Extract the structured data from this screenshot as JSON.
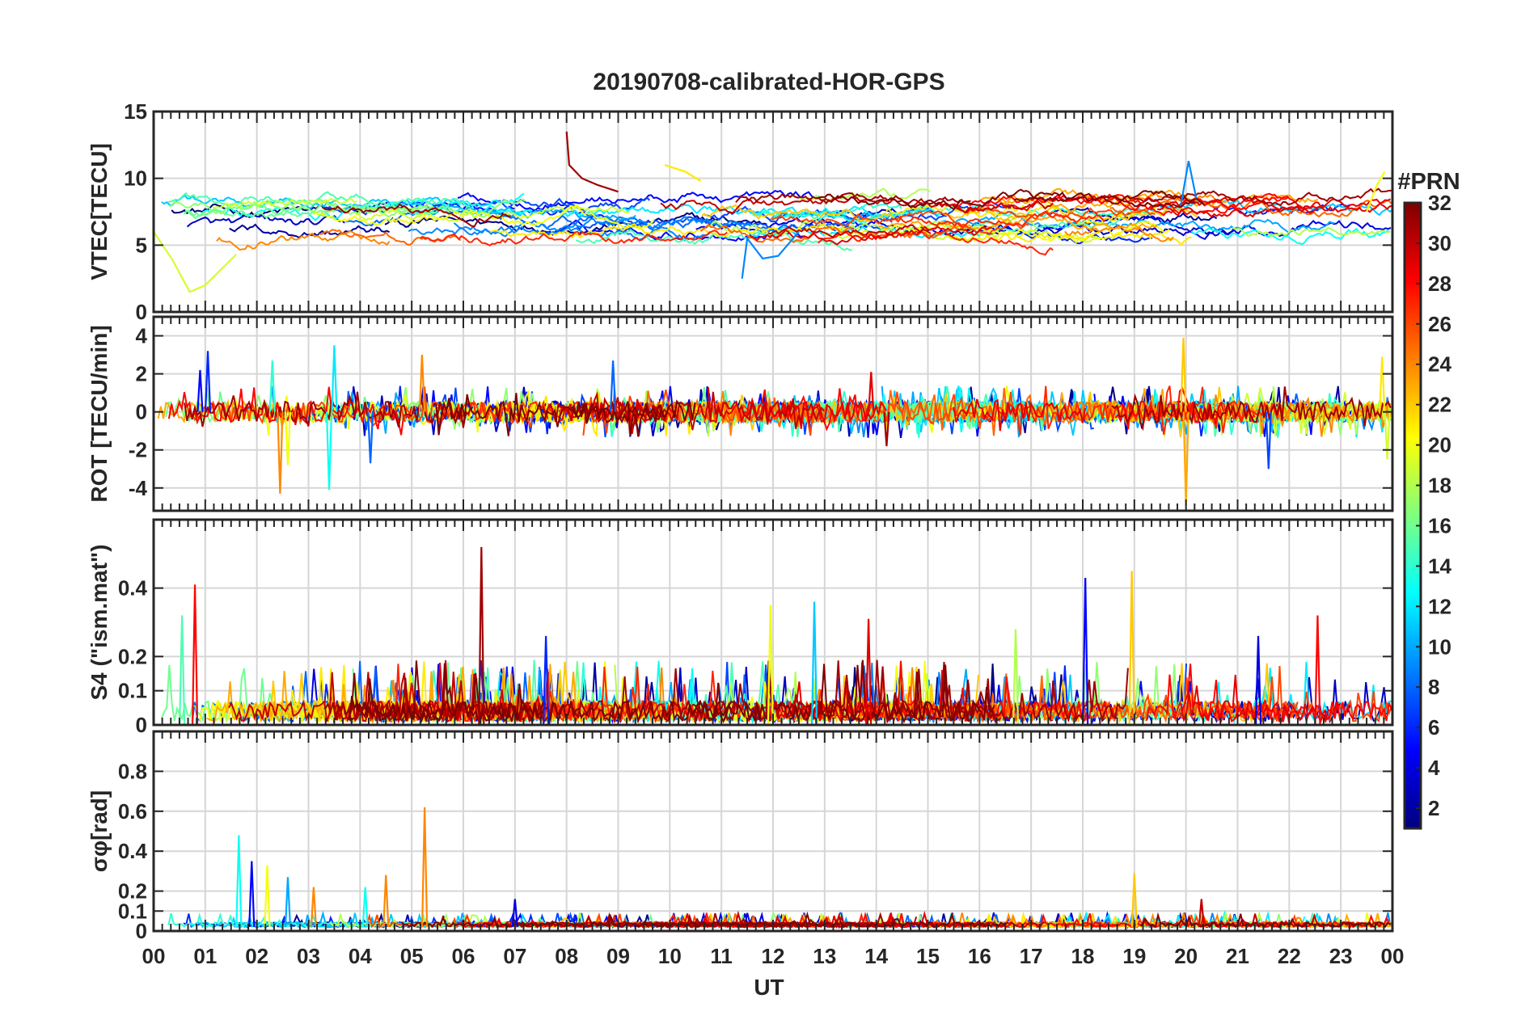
{
  "figure": {
    "title": "20190708-calibrated-HOR-GPS",
    "xlabel": "UT",
    "xtick_labels": [
      "00",
      "01",
      "02",
      "03",
      "04",
      "05",
      "06",
      "07",
      "08",
      "09",
      "10",
      "11",
      "12",
      "13",
      "14",
      "15",
      "16",
      "17",
      "18",
      "19",
      "20",
      "21",
      "22",
      "23",
      "00"
    ],
    "colorbar": {
      "title": "#PRN",
      "range": [
        1,
        32
      ],
      "tick_labels": [
        "2",
        "4",
        "6",
        "8",
        "10",
        "12",
        "14",
        "16",
        "18",
        "20",
        "22",
        "24",
        "26",
        "28",
        "30",
        "32"
      ],
      "colormap": "jet",
      "jet_stops": [
        "#00007f",
        "#0000ff",
        "#007fff",
        "#00ffff",
        "#7fff7f",
        "#ffff00",
        "#ff7f00",
        "#ff0000",
        "#7f0000"
      ]
    }
  },
  "chart_data": [
    {
      "type": "line",
      "panel": "VTEC",
      "ylabel": "VTEC[TECU]",
      "xlim": [
        0,
        24
      ],
      "ylim": [
        0,
        15
      ],
      "yticks": [
        0,
        5,
        10,
        15
      ],
      "ytick_labels": [
        "0",
        "5",
        "10",
        "15"
      ],
      "grid": true,
      "series_description": "one trace per GPS PRN 1-32, colored by PRN",
      "typical_range": [
        5,
        9
      ],
      "features": [
        {
          "prn": 19,
          "x": [
            0.0,
            0.35,
            0.7,
            1.0,
            1.6
          ],
          "y": [
            6.0,
            4.0,
            1.5,
            2.0,
            4.3
          ]
        },
        {
          "prn": 31,
          "x": [
            8.0,
            8.05,
            8.3,
            8.6,
            9.0
          ],
          "y": [
            13.5,
            11.0,
            10.0,
            9.5,
            9.0
          ]
        },
        {
          "prn": 21,
          "x": [
            9.9,
            10.3,
            10.6
          ],
          "y": [
            11.0,
            10.5,
            9.8
          ]
        },
        {
          "prn": 9,
          "x": [
            11.4,
            11.5,
            11.8,
            12.1,
            12.5
          ],
          "y": [
            2.5,
            5.5,
            4.0,
            4.2,
            6.0
          ]
        },
        {
          "prn": 9,
          "x": [
            19.9,
            20.05,
            20.2
          ],
          "y": [
            8.0,
            11.3,
            8.5
          ]
        },
        {
          "prn": 20,
          "x": [
            23.5,
            23.7,
            23.85
          ],
          "y": [
            7.5,
            9.5,
            10.5
          ]
        }
      ]
    },
    {
      "type": "line",
      "panel": "ROT",
      "ylabel": "ROT [TECU/min]",
      "xlim": [
        0,
        24
      ],
      "ylim": [
        -5.2,
        5.0
      ],
      "yticks": [
        -4,
        -2,
        0,
        2,
        4
      ],
      "ytick_labels": [
        "-4",
        "-2",
        "0",
        "2",
        "4"
      ],
      "grid": true,
      "typical_range": [
        -0.5,
        0.5
      ],
      "spikes": [
        {
          "x": 0.9,
          "y": 2.2,
          "prn": 5
        },
        {
          "x": 1.05,
          "y": 3.2,
          "prn": 6
        },
        {
          "x": 2.3,
          "y": 2.7,
          "prn": 14
        },
        {
          "x": 2.45,
          "y": -4.3,
          "prn": 24
        },
        {
          "x": 2.6,
          "y": -2.8,
          "prn": 20
        },
        {
          "x": 3.4,
          "y": -4.1,
          "prn": 13
        },
        {
          "x": 3.5,
          "y": 3.5,
          "prn": 12
        },
        {
          "x": 4.2,
          "y": -2.7,
          "prn": 8
        },
        {
          "x": 5.2,
          "y": 3.0,
          "prn": 24
        },
        {
          "x": 8.9,
          "y": 2.7,
          "prn": 8
        },
        {
          "x": 13.9,
          "y": 2.1,
          "prn": 29
        },
        {
          "x": 14.2,
          "y": -1.8,
          "prn": 31
        },
        {
          "x": 19.95,
          "y": 3.9,
          "prn": 22
        },
        {
          "x": 20.0,
          "y": -4.9,
          "prn": 23
        },
        {
          "x": 21.6,
          "y": -3.0,
          "prn": 7
        },
        {
          "x": 23.8,
          "y": 2.9,
          "prn": 21
        },
        {
          "x": 23.9,
          "y": -2.5,
          "prn": 19
        }
      ]
    },
    {
      "type": "line",
      "panel": "S4",
      "ylabel": "S4 (\"ism.mat\")",
      "xlim": [
        0,
        24
      ],
      "ylim": [
        0,
        0.6
      ],
      "yticks": [
        0,
        0.1,
        0.2,
        0.4
      ],
      "ytick_labels": [
        "0",
        "0.1",
        "0.2",
        "0.4"
      ],
      "grid": true,
      "typical_range": [
        0.0,
        0.1
      ],
      "spikes": [
        {
          "x": 0.55,
          "y": 0.32,
          "prn": 15
        },
        {
          "x": 0.8,
          "y": 0.41,
          "prn": 28
        },
        {
          "x": 6.35,
          "y": 0.52,
          "prn": 31
        },
        {
          "x": 7.6,
          "y": 0.26,
          "prn": 6
        },
        {
          "x": 11.95,
          "y": 0.35,
          "prn": 20
        },
        {
          "x": 12.8,
          "y": 0.36,
          "prn": 11
        },
        {
          "x": 13.85,
          "y": 0.31,
          "prn": 29
        },
        {
          "x": 18.05,
          "y": 0.43,
          "prn": 5
        },
        {
          "x": 18.95,
          "y": 0.45,
          "prn": 22
        },
        {
          "x": 22.55,
          "y": 0.32,
          "prn": 28
        },
        {
          "x": 16.7,
          "y": 0.28,
          "prn": 18
        },
        {
          "x": 21.4,
          "y": 0.26,
          "prn": 4
        }
      ]
    },
    {
      "type": "line",
      "panel": "SigmaPhi",
      "ylabel": "σφ[rad]",
      "xlim": [
        0,
        24
      ],
      "ylim": [
        0,
        1.0
      ],
      "yticks": [
        0,
        0.1,
        0.2,
        0.4,
        0.6,
        0.8
      ],
      "ytick_labels": [
        "0",
        "0.1",
        "0.2",
        "0.4",
        "0.6",
        "0.8"
      ],
      "grid": true,
      "typical_range": [
        0.02,
        0.06
      ],
      "spikes": [
        {
          "x": 1.65,
          "y": 0.48,
          "prn": 13
        },
        {
          "x": 1.9,
          "y": 0.35,
          "prn": 5
        },
        {
          "x": 2.2,
          "y": 0.33,
          "prn": 20
        },
        {
          "x": 2.6,
          "y": 0.27,
          "prn": 10
        },
        {
          "x": 3.1,
          "y": 0.22,
          "prn": 24
        },
        {
          "x": 4.1,
          "y": 0.22,
          "prn": 13
        },
        {
          "x": 4.5,
          "y": 0.28,
          "prn": 24
        },
        {
          "x": 5.25,
          "y": 0.62,
          "prn": 24
        },
        {
          "x": 7.0,
          "y": 0.16,
          "prn": 4
        },
        {
          "x": 19.0,
          "y": 0.29,
          "prn": 22
        },
        {
          "x": 20.3,
          "y": 0.16,
          "prn": 30
        }
      ]
    }
  ]
}
